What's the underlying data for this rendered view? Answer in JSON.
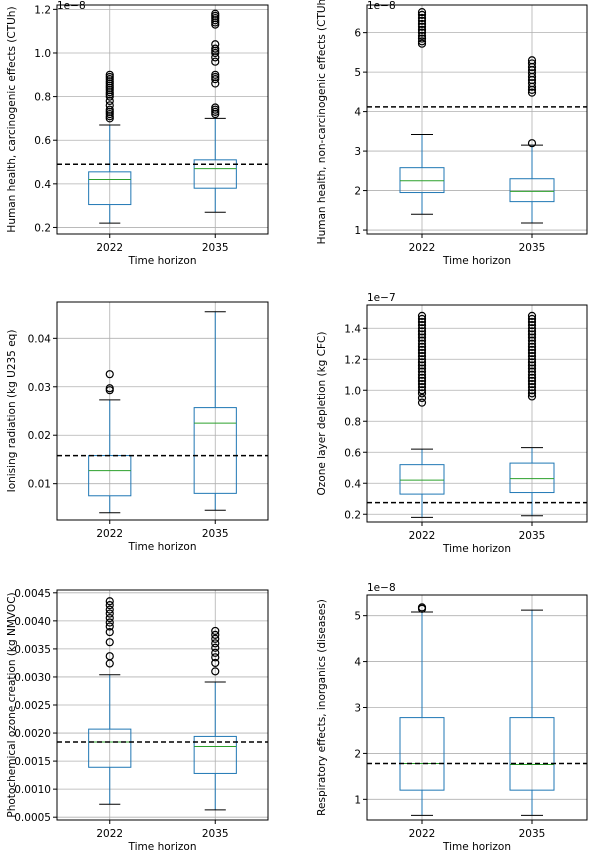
{
  "chart_data": [
    {
      "type": "box",
      "ylabel": "Human health, carcinogenic effects (CTUh)",
      "xlabel": "Time horizon",
      "y_multiplier": "1e−8",
      "categories": [
        "2022",
        "2035"
      ],
      "ylim": [
        0.17,
        1.22
      ],
      "yticks": [
        0.2,
        0.4,
        0.6,
        0.8,
        1.0,
        1.2
      ],
      "ytick_labels": [
        "0.2",
        "0.4",
        "0.6",
        "0.8",
        "1.0",
        "1.2"
      ],
      "grid": true,
      "reference_line": 0.49,
      "boxes": [
        {
          "label": "2022",
          "whislo": 0.22,
          "q1": 0.305,
          "med": 0.42,
          "q3": 0.455,
          "whishi": 0.67,
          "fliers": [
            0.7,
            0.71,
            0.72,
            0.73,
            0.74,
            0.76,
            0.78,
            0.8,
            0.81,
            0.82,
            0.83,
            0.84,
            0.85,
            0.86,
            0.87,
            0.88,
            0.89,
            0.9
          ]
        },
        {
          "label": "2035",
          "whislo": 0.27,
          "q1": 0.38,
          "med": 0.47,
          "q3": 0.51,
          "whishi": 0.7,
          "fliers": [
            0.72,
            0.73,
            0.74,
            0.75,
            0.86,
            0.88,
            0.89,
            0.9,
            0.96,
            0.98,
            1.0,
            1.01,
            1.02,
            1.04,
            1.13,
            1.14,
            1.15,
            1.16,
            1.17,
            1.18
          ]
        }
      ]
    },
    {
      "type": "box",
      "ylabel": "Human health, non-carcinogenic effects (CTUh)",
      "xlabel": "Time horizon",
      "y_multiplier": "1e−8",
      "categories": [
        "2022",
        "2035"
      ],
      "ylim": [
        0.9,
        6.7
      ],
      "yticks": [
        1,
        2,
        3,
        4,
        5,
        6
      ],
      "ytick_labels": [
        "1",
        "2",
        "3",
        "4",
        "5",
        "6"
      ],
      "grid": true,
      "reference_line": 4.12,
      "boxes": [
        {
          "label": "2022",
          "whislo": 1.4,
          "q1": 1.95,
          "med": 2.25,
          "q3": 2.58,
          "whishi": 3.42,
          "fliers": [
            5.72,
            5.78,
            5.85,
            5.92,
            6.0,
            6.07,
            6.15,
            6.22,
            6.3,
            6.37,
            6.45,
            6.52
          ]
        },
        {
          "label": "2035",
          "whislo": 1.18,
          "q1": 1.72,
          "med": 1.98,
          "q3": 2.3,
          "whishi": 3.15,
          "fliers": [
            3.2,
            4.48,
            4.55,
            4.63,
            4.72,
            4.8,
            4.88,
            4.97,
            5.05,
            5.13,
            5.22,
            5.3
          ]
        }
      ]
    },
    {
      "type": "box",
      "ylabel": "Ionising radiation (kg U235 eq)",
      "xlabel": "Time horizon",
      "y_multiplier": "",
      "categories": [
        "2022",
        "2035"
      ],
      "ylim": [
        0.0025,
        0.0475
      ],
      "yticks": [
        0.01,
        0.02,
        0.03,
        0.04
      ],
      "ytick_labels": [
        "0.01",
        "0.02",
        "0.03",
        "0.04"
      ],
      "grid": true,
      "reference_line": 0.0158,
      "boxes": [
        {
          "label": "2022",
          "whislo": 0.004,
          "q1": 0.0075,
          "med": 0.0127,
          "q3": 0.0158,
          "whishi": 0.0273,
          "fliers": [
            0.0293,
            0.0297,
            0.0326
          ]
        },
        {
          "label": "2035",
          "whislo": 0.0045,
          "q1": 0.008,
          "med": 0.0225,
          "q3": 0.0257,
          "whishi": 0.0455,
          "fliers": []
        }
      ]
    },
    {
      "type": "box",
      "ylabel": "Ozone layer depletion (kg CFC)",
      "xlabel": "Time horizon",
      "y_multiplier": "1e−7",
      "categories": [
        "2022",
        "2035"
      ],
      "ylim": [
        0.15,
        1.55
      ],
      "yticks": [
        0.2,
        0.4,
        0.6,
        0.8,
        1.0,
        1.2,
        1.4
      ],
      "ytick_labels": [
        "0.2",
        "0.4",
        "0.6",
        "0.8",
        "1.0",
        "1.2",
        "1.4"
      ],
      "grid": true,
      "reference_line": 0.275,
      "boxes": [
        {
          "label": "2022",
          "whislo": 0.18,
          "q1": 0.33,
          "med": 0.42,
          "q3": 0.52,
          "whishi": 0.62,
          "fliers": [
            0.92,
            0.95,
            0.98,
            1.0,
            1.02,
            1.04,
            1.06,
            1.08,
            1.1,
            1.12,
            1.14,
            1.16,
            1.18,
            1.2,
            1.22,
            1.24,
            1.26,
            1.28,
            1.3,
            1.32,
            1.34,
            1.36,
            1.38,
            1.4,
            1.42,
            1.44,
            1.46,
            1.48
          ]
        },
        {
          "label": "2035",
          "whislo": 0.19,
          "q1": 0.34,
          "med": 0.43,
          "q3": 0.53,
          "whishi": 0.63,
          "fliers": [
            0.96,
            0.98,
            1.0,
            1.02,
            1.04,
            1.06,
            1.08,
            1.1,
            1.12,
            1.14,
            1.16,
            1.18,
            1.2,
            1.22,
            1.24,
            1.26,
            1.28,
            1.3,
            1.32,
            1.34,
            1.36,
            1.38,
            1.4,
            1.42,
            1.44,
            1.46,
            1.48
          ]
        }
      ]
    },
    {
      "type": "box",
      "ylabel": "Photochemical ozone creation (kg NMVOC)",
      "xlabel": "Time horizon",
      "y_multiplier": "",
      "categories": [
        "2022",
        "2035"
      ],
      "ylim": [
        0.00045,
        0.00455
      ],
      "yticks": [
        0.0005,
        0.001,
        0.0015,
        0.002,
        0.0025,
        0.003,
        0.0035,
        0.004,
        0.0045
      ],
      "ytick_labels": [
        "0.0005",
        "0.0010",
        "0.0015",
        "0.0020",
        "0.0025",
        "0.0030",
        "0.0035",
        "0.0040",
        "0.0045"
      ],
      "grid": true,
      "reference_line": 0.00184,
      "boxes": [
        {
          "label": "2022",
          "whislo": 0.00073,
          "q1": 0.00139,
          "med": 0.00184,
          "q3": 0.00207,
          "whishi": 0.00304,
          "fliers": [
            0.00324,
            0.00337,
            0.00362,
            0.0038,
            0.0039,
            0.00397,
            0.00405,
            0.00413,
            0.0042,
            0.00428,
            0.00435
          ]
        },
        {
          "label": "2035",
          "whislo": 0.00063,
          "q1": 0.00128,
          "med": 0.00176,
          "q3": 0.00194,
          "whishi": 0.00291,
          "fliers": [
            0.0031,
            0.00325,
            0.00335,
            0.00343,
            0.00352,
            0.0036,
            0.00368,
            0.00375,
            0.00382
          ]
        }
      ]
    },
    {
      "type": "box",
      "ylabel": "Respiratory effects, inorganics (diseases)",
      "xlabel": "Time horizon",
      "y_multiplier": "1e−8",
      "categories": [
        "2022",
        "2035"
      ],
      "ylim": [
        0.55,
        5.45
      ],
      "yticks": [
        1,
        2,
        3,
        4,
        5
      ],
      "ytick_labels": [
        "1",
        "2",
        "3",
        "4",
        "5"
      ],
      "grid": true,
      "reference_line": 1.78,
      "boxes": [
        {
          "label": "2022",
          "whislo": 0.65,
          "q1": 1.2,
          "med": 1.78,
          "q3": 2.78,
          "whishi": 5.08,
          "fliers": [
            5.15,
            5.18
          ]
        },
        {
          "label": "2035",
          "whislo": 0.65,
          "q1": 1.2,
          "med": 1.76,
          "q3": 2.78,
          "whishi": 5.12,
          "fliers": []
        }
      ]
    }
  ]
}
